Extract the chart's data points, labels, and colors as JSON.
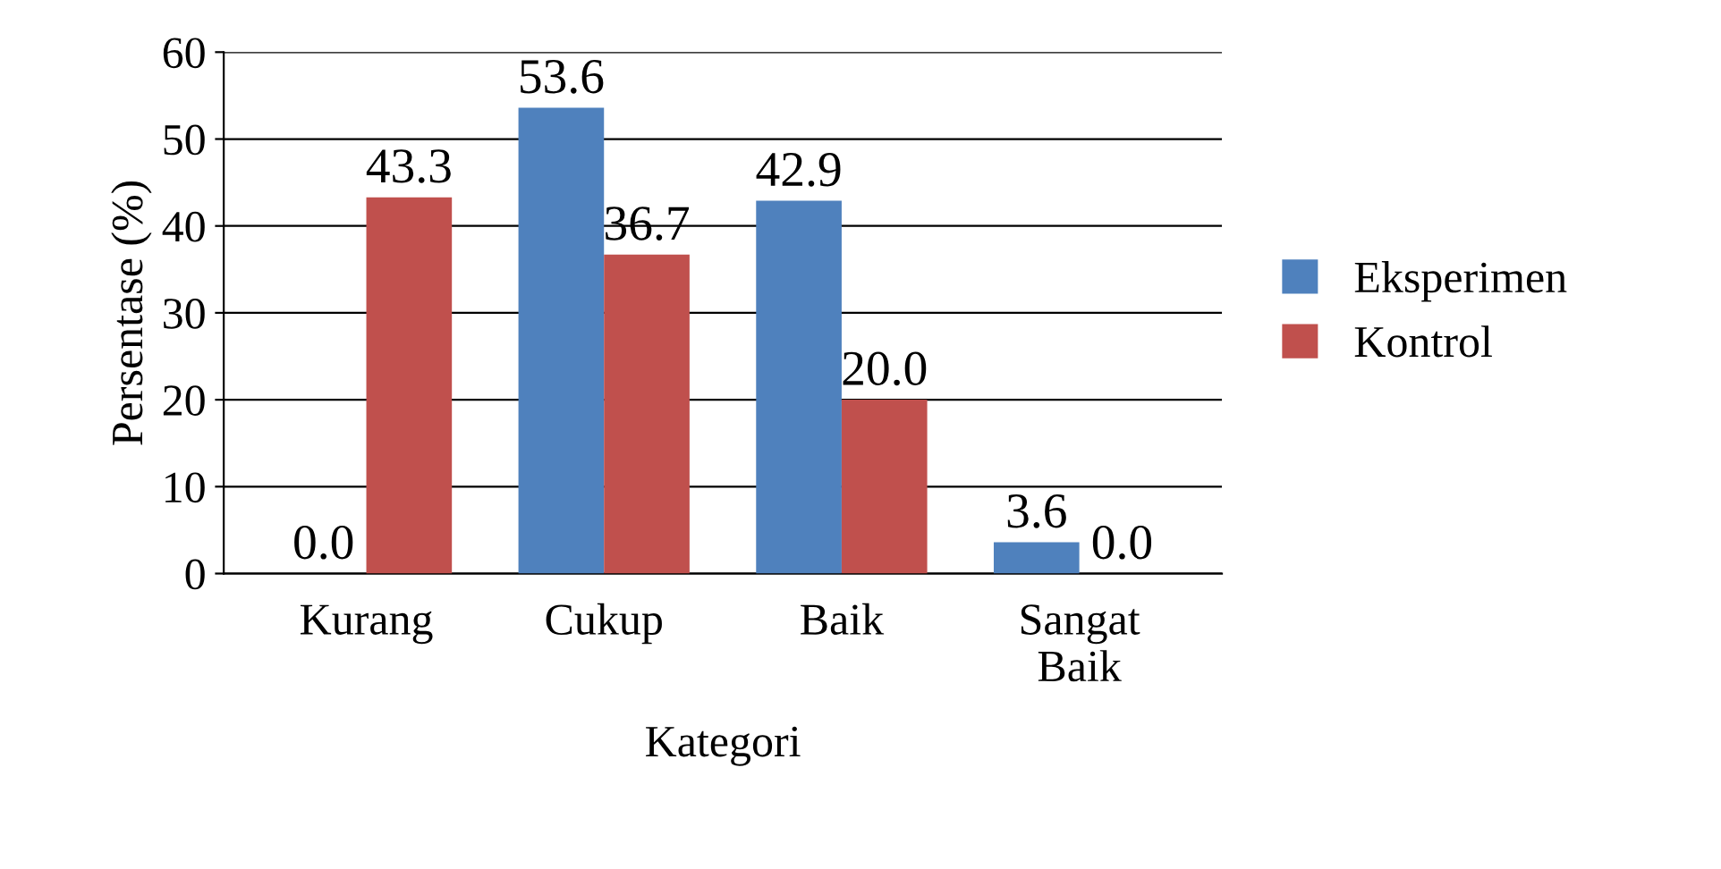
{
  "chart_data": {
    "type": "bar",
    "xlabel": "Kategori",
    "ylabel": "Persentase (%)",
    "categories": [
      "Kurang",
      "Cukup",
      "Baik",
      "Sangat Baik"
    ],
    "series": [
      {
        "name": "Eksperimen",
        "color": "#4f81bd",
        "values": [
          0.0,
          53.6,
          42.9,
          3.6
        ],
        "value_labels": [
          "0.0",
          "53.6",
          "42.9",
          "3.6"
        ]
      },
      {
        "name": "Kontrol",
        "color": "#c0504d",
        "values": [
          43.3,
          36.7,
          20.0,
          0.0
        ],
        "value_labels": [
          "43.3",
          "36.7",
          "20.0",
          "0.0"
        ]
      }
    ],
    "ylim": [
      0,
      60
    ],
    "yticks": [
      0,
      10,
      20,
      30,
      40,
      50,
      60
    ],
    "grid": "y",
    "legend": "right"
  }
}
